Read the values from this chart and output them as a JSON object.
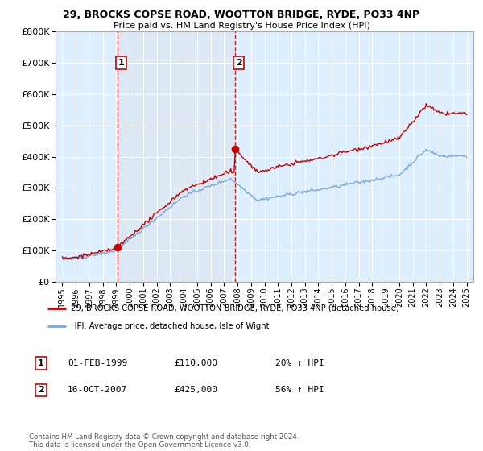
{
  "title_line1": "29, BROCKS COPSE ROAD, WOOTTON BRIDGE, RYDE, PO33 4NP",
  "title_line2": "Price paid vs. HM Land Registry's House Price Index (HPI)",
  "hpi_color": "#7aaadd",
  "price_color": "#cc0000",
  "shade_color": "#dde8f5",
  "purchase1_date_x": 1999.08,
  "purchase1_value": 110000,
  "purchase2_date_x": 2007.79,
  "purchase2_value": 425000,
  "legend_line1": "29, BROCKS COPSE ROAD, WOOTTON BRIDGE, RYDE, PO33 4NP (detached house)",
  "legend_line2": "HPI: Average price, detached house, Isle of Wight",
  "annotation1_label": "1",
  "annotation1_date": "01-FEB-1999",
  "annotation1_price": "£110,000",
  "annotation1_hpi": "20% ↑ HPI",
  "annotation2_label": "2",
  "annotation2_date": "16-OCT-2007",
  "annotation2_price": "£425,000",
  "annotation2_hpi": "56% ↑ HPI",
  "footer": "Contains HM Land Registry data © Crown copyright and database right 2024.\nThis data is licensed under the Open Government Licence v3.0.",
  "ylim": [
    0,
    800000
  ],
  "yticks": [
    0,
    100000,
    200000,
    300000,
    400000,
    500000,
    600000,
    700000,
    800000
  ],
  "xlim": [
    1994.5,
    2025.5
  ],
  "xtick_years": [
    1995,
    1996,
    1997,
    1998,
    1999,
    2000,
    2001,
    2002,
    2003,
    2004,
    2005,
    2006,
    2007,
    2008,
    2009,
    2010,
    2011,
    2012,
    2013,
    2014,
    2015,
    2016,
    2017,
    2018,
    2019,
    2020,
    2021,
    2022,
    2023,
    2024,
    2025
  ]
}
